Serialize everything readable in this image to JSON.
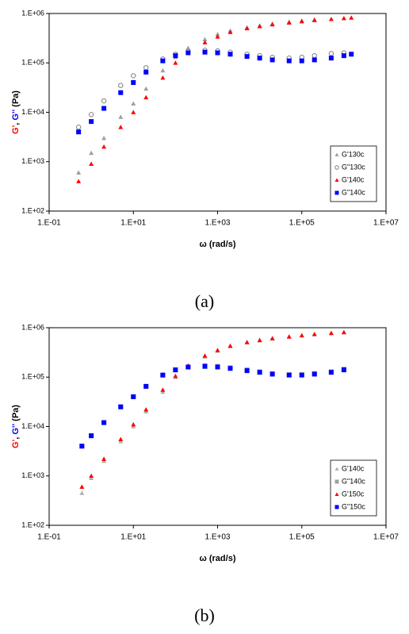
{
  "chart_data": [
    {
      "type": "scatter",
      "caption": "(a)",
      "xlabel": "ω (rad/s)",
      "ylabel": [
        {
          "text": "G'",
          "color": "#ff0000"
        },
        {
          "text": ", ",
          "color": "#000000"
        },
        {
          "text": "G''",
          "color": "#0000ff"
        },
        {
          "text": " (Pa)",
          "color": "#000000"
        }
      ],
      "xscale": "log",
      "yscale": "log",
      "legend": "bottom-right",
      "xlim": [
        0.1,
        10000000
      ],
      "ylim": [
        100,
        1000000
      ],
      "xticks": [
        {
          "value": 0.1,
          "label": "1.E-01"
        },
        {
          "value": 10,
          "label": "1.E+01"
        },
        {
          "value": 1000,
          "label": "1.E+03"
        },
        {
          "value": 100000,
          "label": "1.E+05"
        },
        {
          "value": 10000000,
          "label": "1.E+07"
        }
      ],
      "yticks": [
        {
          "value": 100,
          "label": "1.E+02"
        },
        {
          "value": 1000,
          "label": "1.E+03"
        },
        {
          "value": 10000,
          "label": "1.E+04"
        },
        {
          "value": 100000,
          "label": "1.E+05"
        },
        {
          "value": 1000000,
          "label": "1.E+06"
        }
      ],
      "x": [
        0.5,
        1,
        2,
        5,
        10,
        20,
        50,
        100,
        200,
        500,
        1000,
        2000,
        5000,
        10000,
        20000,
        50000,
        100000,
        200000,
        500000,
        1000000,
        1500000
      ],
      "series": [
        {
          "name": "G'130c",
          "color": "#a0a0a0",
          "marker": "triangle",
          "values": [
            600,
            1500,
            3000,
            8000,
            15000,
            30000,
            70000,
            130000,
            200000,
            300000,
            380000,
            450000,
            520000,
            570000,
            620000,
            680000,
            720000,
            760000,
            null,
            null,
            null
          ]
        },
        {
          "name": "G\"130c",
          "color": "#808080",
          "marker": "circle-open",
          "values": [
            5000,
            9000,
            17000,
            35000,
            55000,
            80000,
            120000,
            150000,
            170000,
            180000,
            175000,
            165000,
            150000,
            140000,
            130000,
            125000,
            130000,
            140000,
            155000,
            160000,
            null
          ]
        },
        {
          "name": "G'140c",
          "color": "#ff0000",
          "marker": "triangle",
          "values": [
            400,
            900,
            2000,
            5000,
            10000,
            20000,
            50000,
            100000,
            160000,
            260000,
            340000,
            420000,
            500000,
            550000,
            600000,
            650000,
            690000,
            730000,
            770000,
            800000,
            820000
          ]
        },
        {
          "name": "G\"140c",
          "color": "#0000ff",
          "marker": "square",
          "values": [
            4000,
            6500,
            12000,
            25000,
            40000,
            65000,
            110000,
            140000,
            160000,
            165000,
            160000,
            150000,
            135000,
            125000,
            115000,
            110000,
            110000,
            115000,
            125000,
            140000,
            150000
          ]
        }
      ]
    },
    {
      "type": "scatter",
      "caption": "(b)",
      "xlabel": "ω (rad/s)",
      "ylabel": [
        {
          "text": "G'",
          "color": "#ff0000"
        },
        {
          "text": ", ",
          "color": "#000000"
        },
        {
          "text": "G''",
          "color": "#0000ff"
        },
        {
          "text": " (Pa)",
          "color": "#000000"
        }
      ],
      "xscale": "log",
      "yscale": "log",
      "legend": "bottom-right",
      "xlim": [
        0.1,
        10000000
      ],
      "ylim": [
        100,
        1000000
      ],
      "xticks": [
        {
          "value": 0.1,
          "label": "1.E-01"
        },
        {
          "value": 10,
          "label": "1.E+01"
        },
        {
          "value": 1000,
          "label": "1.E+03"
        },
        {
          "value": 100000,
          "label": "1.E+05"
        },
        {
          "value": 10000000,
          "label": "1.E+07"
        }
      ],
      "yticks": [
        {
          "value": 100,
          "label": "1.E+02"
        },
        {
          "value": 1000,
          "label": "1.E+03"
        },
        {
          "value": 10000,
          "label": "1.E+04"
        },
        {
          "value": 100000,
          "label": "1.E+05"
        },
        {
          "value": 1000000,
          "label": "1.E+06"
        }
      ],
      "x": [
        0.6,
        1,
        2,
        5,
        10,
        20,
        50,
        100,
        200,
        500,
        1000,
        2000,
        5000,
        10000,
        20000,
        50000,
        100000,
        200000,
        500000,
        1000000
      ],
      "series": [
        {
          "name": "G'140c",
          "color": "#b0b0b0",
          "marker": "triangle",
          "values": [
            450,
            900,
            2000,
            5000,
            10000,
            20000,
            50000,
            100000,
            160000,
            260000,
            340000,
            420000,
            500000,
            550000,
            600000,
            650000,
            690000,
            730000,
            770000,
            800000
          ]
        },
        {
          "name": "G\"140c",
          "color": "#a0a0a0",
          "marker": "square",
          "values": [
            4000,
            6500,
            12000,
            25000,
            40000,
            65000,
            110000,
            140000,
            160000,
            170000,
            165000,
            155000,
            140000,
            128000,
            118000,
            112000,
            112000,
            118000,
            128000,
            145000
          ]
        },
        {
          "name": "G'150c",
          "color": "#ff0000",
          "marker": "triangle",
          "values": [
            600,
            1000,
            2200,
            5500,
            11000,
            22000,
            55000,
            105000,
            170000,
            270000,
            350000,
            430000,
            510000,
            560000,
            610000,
            660000,
            700000,
            740000,
            780000,
            810000
          ]
        },
        {
          "name": "G\"150c",
          "color": "#0000ff",
          "marker": "square",
          "values": [
            4000,
            6500,
            12000,
            25000,
            40000,
            65000,
            110000,
            140000,
            160000,
            165000,
            160000,
            150000,
            135000,
            125000,
            115000,
            110000,
            110000,
            115000,
            125000,
            140000
          ]
        }
      ]
    }
  ]
}
